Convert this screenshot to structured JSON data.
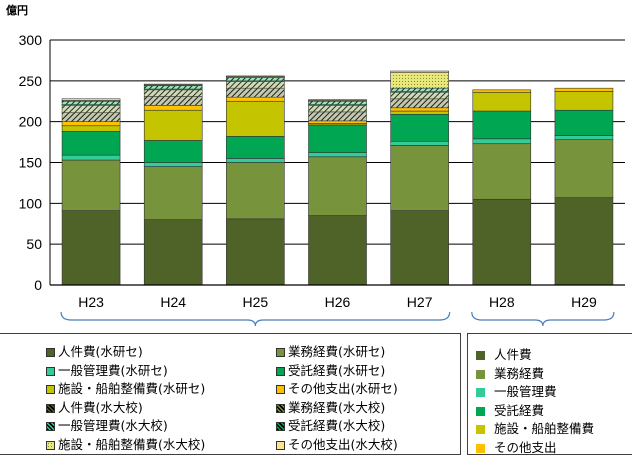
{
  "chart_data": {
    "type": "bar",
    "stacked": true,
    "unit_label": "億円",
    "ylim": [
      0,
      300
    ],
    "y_ticks": [
      "0",
      "50",
      "100",
      "150",
      "200",
      "250",
      "300"
    ],
    "categories": [
      "H23",
      "H24",
      "H25",
      "H26",
      "H27",
      "H28",
      "H29"
    ],
    "series": [
      {
        "name": "人件費(水研セ)",
        "color": "#4f6228",
        "pattern": "solid",
        "values": [
          91,
          80,
          81,
          85,
          91,
          0,
          0
        ]
      },
      {
        "name": "業務経費(水研セ)",
        "color": "#77933c",
        "pattern": "solid",
        "values": [
          62,
          65,
          69,
          72,
          80,
          0,
          0
        ]
      },
      {
        "name": "一般管理費(水研セ)",
        "color": "#33cc99",
        "pattern": "solid",
        "values": [
          6,
          5,
          5,
          5,
          5,
          0,
          0
        ]
      },
      {
        "name": "受託経費(水研セ)",
        "color": "#00a651",
        "pattern": "solid",
        "values": [
          29,
          27,
          27,
          34,
          33,
          0,
          0
        ]
      },
      {
        "name": "施設・船舶整備費(水研セ)",
        "color": "#c4c400",
        "pattern": "solid",
        "values": [
          7,
          37,
          43,
          2,
          4,
          0,
          0
        ]
      },
      {
        "name": "その他支出(水研セ)",
        "color": "#ffc000",
        "pattern": "solid",
        "values": [
          5,
          6,
          5,
          3,
          4,
          0,
          0
        ]
      },
      {
        "name": "人件費(水大校)",
        "color": "#4f6228",
        "pattern": "hatch",
        "values": [
          11,
          11,
          11,
          11,
          11,
          0,
          0
        ]
      },
      {
        "name": "業務経費(水大校)",
        "color": "#77933c",
        "pattern": "hatch",
        "values": [
          9,
          8,
          8,
          8,
          8,
          0,
          0
        ]
      },
      {
        "name": "一般管理費(水大校)",
        "color": "#33cc99",
        "pattern": "hatch",
        "values": [
          1,
          1,
          1,
          1,
          1,
          0,
          0
        ]
      },
      {
        "name": "受託経費(水大校)",
        "color": "#00a651",
        "pattern": "hatch",
        "values": [
          4,
          4,
          4,
          4,
          4,
          0,
          0
        ]
      },
      {
        "name": "施設・船舶整備費(水大校)",
        "color": "#e8e87a",
        "pattern": "dots",
        "values": [
          1,
          1,
          1,
          1,
          19,
          0,
          0
        ]
      },
      {
        "name": "その他支出(水大校)",
        "color": "#ffe38a",
        "pattern": "solid",
        "values": [
          2,
          1,
          1,
          1,
          2,
          0,
          0
        ]
      },
      {
        "name": "人件費",
        "color": "#4f6228",
        "pattern": "solid",
        "values": [
          0,
          0,
          0,
          0,
          0,
          105,
          107
        ]
      },
      {
        "name": "業務経費",
        "color": "#77933c",
        "pattern": "solid",
        "values": [
          0,
          0,
          0,
          0,
          0,
          68,
          71
        ]
      },
      {
        "name": "一般管理費",
        "color": "#33cc99",
        "pattern": "solid",
        "values": [
          0,
          0,
          0,
          0,
          0,
          6,
          5
        ]
      },
      {
        "name": "受託経費",
        "color": "#00a651",
        "pattern": "solid",
        "values": [
          0,
          0,
          0,
          0,
          0,
          34,
          31
        ]
      },
      {
        "name": "施設・船舶整備費",
        "color": "#c4c400",
        "pattern": "solid",
        "values": [
          0,
          0,
          0,
          0,
          0,
          23,
          23
        ]
      },
      {
        "name": "その他支出",
        "color": "#ffc000",
        "pattern": "solid",
        "values": [
          0,
          0,
          0,
          0,
          0,
          3,
          4
        ]
      }
    ]
  },
  "legend_left": [
    [
      "人件費(水研セ)",
      "業務経費(水研セ)"
    ],
    [
      "一般管理費(水研セ)",
      "受託経費(水研セ)"
    ],
    [
      "施設・船舶整備費(水研セ)",
      "その他支出(水研セ)"
    ],
    [
      "人件費(水大校)",
      "業務経費(水大校)"
    ],
    [
      "一般管理費(水大校)",
      "受託経費(水大校)"
    ],
    [
      "施設・船舶整備費(水大校)",
      "その他支出(水大校)"
    ]
  ],
  "legend_right": [
    "人件費",
    "業務経費",
    "一般管理費",
    "受託経費",
    "施設・船舶整備費",
    "その他支出"
  ]
}
